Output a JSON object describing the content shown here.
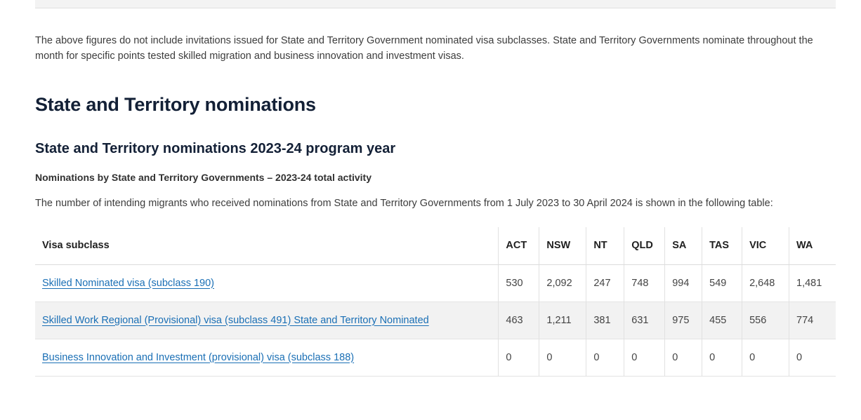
{
  "intro": {
    "text": "The above figures do not include invitations issued for State and Territory Government nominated visa subclasses. State and Territory Governments nominate throughout the month for specific points tested skilled migration and business innovation and investment visas."
  },
  "section": {
    "title": "State and Territory nominations",
    "subtitle": "State and Territory nominations 2023-24 program year",
    "caption": "Nominations by State and Territory Governments – 2023-24 total activity",
    "table_intro": "The number of intending migrants who received nominations from State and Territory Governments from 1 July 2023 to 30 April 2024 is shown in the following table:"
  },
  "table": {
    "headers": [
      "Visa subclass",
      "ACT",
      "NSW",
      "NT",
      "QLD",
      "SA",
      "TAS",
      "VIC",
      "WA"
    ],
    "rows": [
      {
        "label": "Skilled Nominated visa (subclass 190)",
        "values": [
          "530",
          "2,092",
          "247",
          "748",
          "994",
          "549",
          "2,648",
          "1,481"
        ]
      },
      {
        "label": "Skilled Work Regional (Provisional) visa (subclass 491) State and Territory Nominated",
        "values": [
          "463",
          "1,211",
          "381",
          "631",
          "975",
          "455",
          "556",
          "774"
        ]
      },
      {
        "label": "Business Innovation and Investment (provisional) visa (subclass 188)",
        "values": [
          "0",
          "0",
          "0",
          "0",
          "0",
          "0",
          "0",
          "0"
        ]
      }
    ]
  },
  "colors": {
    "heading": "#132036",
    "link": "#1a6fb5",
    "row_shade": "#f2f2f2"
  }
}
